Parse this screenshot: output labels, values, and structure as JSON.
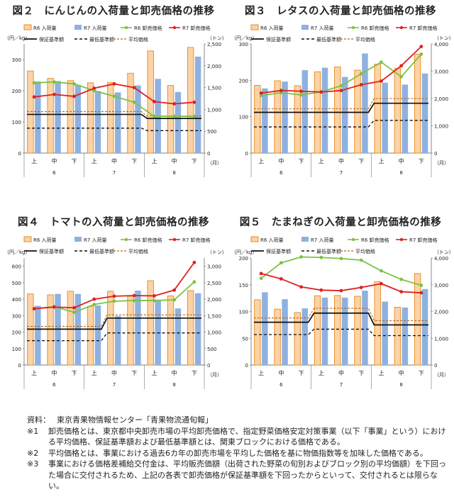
{
  "legend": {
    "r6_volume": "R6 入荷量",
    "r7_volume": "R7 入荷量",
    "r6_price": "R6 卸売価格",
    "r7_price": "R7 卸売価格",
    "guarantee": "保証基準額",
    "minimum": "最低基準額",
    "average": "平均価格"
  },
  "colors": {
    "r6_bar_fill": "#fbd3a6",
    "r6_bar_stroke": "#e8891e",
    "r7_bar_fill": "#8fb1e0",
    "r6_price": "#7cc242",
    "r7_price": "#e02020",
    "reference": "#111111",
    "average": "#b5651d"
  },
  "chart_data": [
    {
      "id": "fig2",
      "type": "bar",
      "title": "図２　にんじんの入荷量と卸売価格の推移",
      "ylabel_left": "（円／kg）",
      "ylabel_right": "（トン）",
      "x_unit": "（月）",
      "ylim_left": [
        0,
        350
      ],
      "yticks_left": [
        "0",
        "100",
        "200",
        "300"
      ],
      "ylim_right": [
        0,
        2500
      ],
      "yticks_right": [
        "0",
        "500",
        "1,000",
        "1,500",
        "2,000",
        "2,500"
      ],
      "categories": [
        "上",
        "中",
        "下",
        "上",
        "中",
        "下",
        "上",
        "中",
        "下"
      ],
      "months": [
        "6",
        "7",
        "8"
      ],
      "series": [
        {
          "name": "R6 入荷量",
          "kind": "bar",
          "axis": "right",
          "values": [
            1880,
            1710,
            1660,
            1610,
            1620,
            1830,
            2340,
            1550,
            2420
          ]
        },
        {
          "name": "R7 入荷量",
          "kind": "bar",
          "axis": "right",
          "values": [
            1640,
            1650,
            1560,
            1420,
            1390,
            1550,
            1700,
            1400,
            2210
          ]
        },
        {
          "name": "R6 卸売価格",
          "kind": "line",
          "axis": "left",
          "values": [
            225,
            228,
            222,
            200,
            182,
            163,
            118,
            118,
            118
          ]
        },
        {
          "name": "R7 卸売価格",
          "kind": "line",
          "axis": "left",
          "values": [
            180,
            188,
            182,
            208,
            222,
            210,
            165,
            158,
            163
          ]
        },
        {
          "name": "保証基準額",
          "kind": "step",
          "axis": "left",
          "values": [
            124,
            124,
            124,
            124,
            124,
            124,
            111,
            111,
            111
          ]
        },
        {
          "name": "最低基準額",
          "kind": "step",
          "axis": "left",
          "values": [
            80,
            80,
            80,
            80,
            80,
            80,
            72,
            72,
            72
          ]
        },
        {
          "name": "平均価格",
          "kind": "step",
          "axis": "left",
          "values": [
            133,
            133,
            133,
            133,
            133,
            133,
            119,
            119,
            119
          ]
        }
      ]
    },
    {
      "id": "fig3",
      "type": "bar",
      "title": "図３　レタスの入荷量と卸売価格の推移",
      "ylabel_left": "（円／kg）",
      "ylabel_right": "（トン）",
      "x_unit": "（月）",
      "ylim_left": [
        0,
        300
      ],
      "yticks_left": [
        "0",
        "100",
        "200",
        "300"
      ],
      "ylim_right": [
        0,
        4000
      ],
      "yticks_right": [
        "0",
        "1,000",
        "2,000",
        "3,000",
        "4,000"
      ],
      "categories": [
        "上",
        "中",
        "下",
        "上",
        "中",
        "下",
        "上",
        "中",
        "下"
      ],
      "months": [
        "6",
        "7",
        "8"
      ],
      "series": [
        {
          "name": "R6 入荷量",
          "kind": "bar",
          "axis": "right",
          "values": [
            2480,
            2650,
            2470,
            2980,
            3160,
            3040,
            3260,
            3110,
            3620
          ]
        },
        {
          "name": "R7 入荷量",
          "kind": "bar",
          "axis": "right",
          "values": [
            2370,
            2620,
            3040,
            3130,
            2790,
            3650,
            2580,
            2510,
            2920
          ]
        },
        {
          "name": "R6 卸売価格",
          "kind": "line",
          "axis": "left",
          "values": [
            158,
            166,
            160,
            168,
            185,
            218,
            250,
            210,
            272
          ]
        },
        {
          "name": "R7 卸売価格",
          "kind": "line",
          "axis": "left",
          "values": [
            165,
            172,
            170,
            168,
            172,
            188,
            198,
            240,
            293
          ]
        },
        {
          "name": "保証基準額",
          "kind": "step",
          "axis": "left",
          "values": [
            112,
            112,
            112,
            112,
            112,
            112,
            137,
            137,
            137
          ]
        },
        {
          "name": "最低基準額",
          "kind": "step",
          "axis": "left",
          "values": [
            72,
            72,
            72,
            72,
            72,
            72,
            90,
            90,
            90
          ]
        },
        {
          "name": "平均価格",
          "kind": "step",
          "axis": "left",
          "values": [
            122,
            122,
            122,
            122,
            122,
            122,
            150,
            150,
            150
          ]
        }
      ]
    },
    {
      "id": "fig4",
      "type": "bar",
      "title": "図４　トマトの入荷量と卸売価格の推移",
      "ylabel_left": "（円／kg）",
      "ylabel_right": "（トン）",
      "x_unit": "（月）",
      "ylim_left": [
        0,
        650
      ],
      "yticks_left": [
        "0",
        "100",
        "200",
        "300",
        "400",
        "500",
        "600"
      ],
      "ylim_right": [
        0,
        3250
      ],
      "yticks_right": [
        "0",
        "500",
        "1,000",
        "1,500",
        "2,000",
        "2,500",
        "3,000"
      ],
      "categories": [
        "上",
        "中",
        "下",
        "上",
        "中",
        "下",
        "上",
        "中",
        "下"
      ],
      "months": [
        "6",
        "7",
        "8"
      ],
      "series": [
        {
          "name": "R6 入荷量",
          "kind": "bar",
          "axis": "right",
          "values": [
            2160,
            2130,
            2240,
            1780,
            2240,
            2090,
            2560,
            2100,
            2260
          ]
        },
        {
          "name": "R7 入荷量",
          "kind": "bar",
          "axis": "right",
          "values": [
            1800,
            2160,
            2160,
            1810,
            1490,
            2260,
            1960,
            1720,
            2180
          ]
        },
        {
          "name": "R6 卸売価格",
          "kind": "line",
          "axis": "left",
          "values": [
            342,
            355,
            320,
            368,
            388,
            392,
            392,
            396,
            505
          ]
        },
        {
          "name": "R7 卸売価格",
          "kind": "line",
          "axis": "left",
          "values": [
            342,
            352,
            348,
            400,
            418,
            422,
            420,
            455,
            623
          ]
        },
        {
          "name": "保証基準額",
          "kind": "step",
          "axis": "left",
          "values": [
            218,
            218,
            218,
            218,
            285,
            285,
            285,
            285,
            285
          ]
        },
        {
          "name": "最低基準額",
          "kind": "step",
          "axis": "left",
          "values": [
            148,
            148,
            148,
            148,
            195,
            195,
            195,
            195,
            195
          ]
        },
        {
          "name": "平均価格",
          "kind": "step",
          "axis": "left",
          "values": [
            235,
            235,
            235,
            235,
            305,
            305,
            305,
            305,
            305
          ]
        }
      ]
    },
    {
      "id": "fig5",
      "type": "bar",
      "title": "図５　たまねぎの入荷量と卸売価格の推移",
      "ylabel_left": "（円／kg）",
      "ylabel_right": "（トン）",
      "x_unit": "（月）",
      "ylim_left": [
        0,
        200
      ],
      "yticks_left": [
        "0",
        "50",
        "100",
        "150",
        "200"
      ],
      "ylim_right": [
        0,
        4000
      ],
      "yticks_right": [
        "0",
        "1,000",
        "2,000",
        "3,000",
        "4,000"
      ],
      "categories": [
        "上",
        "中",
        "下",
        "上",
        "中",
        "下",
        "上",
        "中",
        "下"
      ],
      "months": [
        "6",
        "7",
        "8"
      ],
      "series": [
        {
          "name": "R6 入荷量",
          "kind": "bar",
          "axis": "right",
          "values": [
            2440,
            2090,
            1960,
            2590,
            2600,
            2570,
            3120,
            2160,
            3420
          ]
        },
        {
          "name": "R7 入荷量",
          "kind": "bar",
          "axis": "right",
          "values": [
            2720,
            2460,
            2120,
            2520,
            2520,
            2780,
            2370,
            2150,
            2840
          ]
        },
        {
          "name": "R6 卸売価格",
          "kind": "line",
          "axis": "left",
          "values": [
            162,
            191,
            202,
            201,
            199,
            196,
            176,
            160,
            149
          ]
        },
        {
          "name": "R7 卸売価格",
          "kind": "line",
          "axis": "left",
          "values": [
            171,
            161,
            146,
            140,
            139,
            145,
            152,
            137,
            135
          ]
        },
        {
          "name": "保証基準額",
          "kind": "step",
          "axis": "left",
          "values": [
            80,
            80,
            80,
            97,
            97,
            97,
            75,
            75,
            75
          ]
        },
        {
          "name": "最低基準額",
          "kind": "step",
          "axis": "left",
          "values": [
            57,
            57,
            57,
            67,
            67,
            67,
            55,
            55,
            55
          ]
        },
        {
          "name": "平均価格",
          "kind": "step",
          "axis": "left",
          "values": [
            88,
            88,
            88,
            106,
            106,
            106,
            83,
            83,
            83
          ]
        }
      ]
    }
  ],
  "notes": [
    {
      "label": "資料：",
      "text": "東京青果物情報センター「青果物流通旬報」"
    },
    {
      "label": "※1",
      "text": "卸売価格とは、東京都中央卸売市場の平均卸売価格で、指定野菜価格安定対策事業（以下「事業」という）における平均価格、保証基準額および最低基準額とは、関東ブロックにおける価格である。"
    },
    {
      "label": "※2",
      "text": "平均価格とは、事業における過去6カ年の卸売市場を平均した価格を基に物価指数等を加味した価格である。"
    },
    {
      "label": "※3",
      "text": "事業における価格差補給交付金は、平均販売価額（出荷された野菜の旬別およびブロック別の平均価額）を下回った場合に交付されるため、上記の各表で卸売価格が保証基準額を下回ったからといって、交付されるとは限らない。"
    }
  ]
}
